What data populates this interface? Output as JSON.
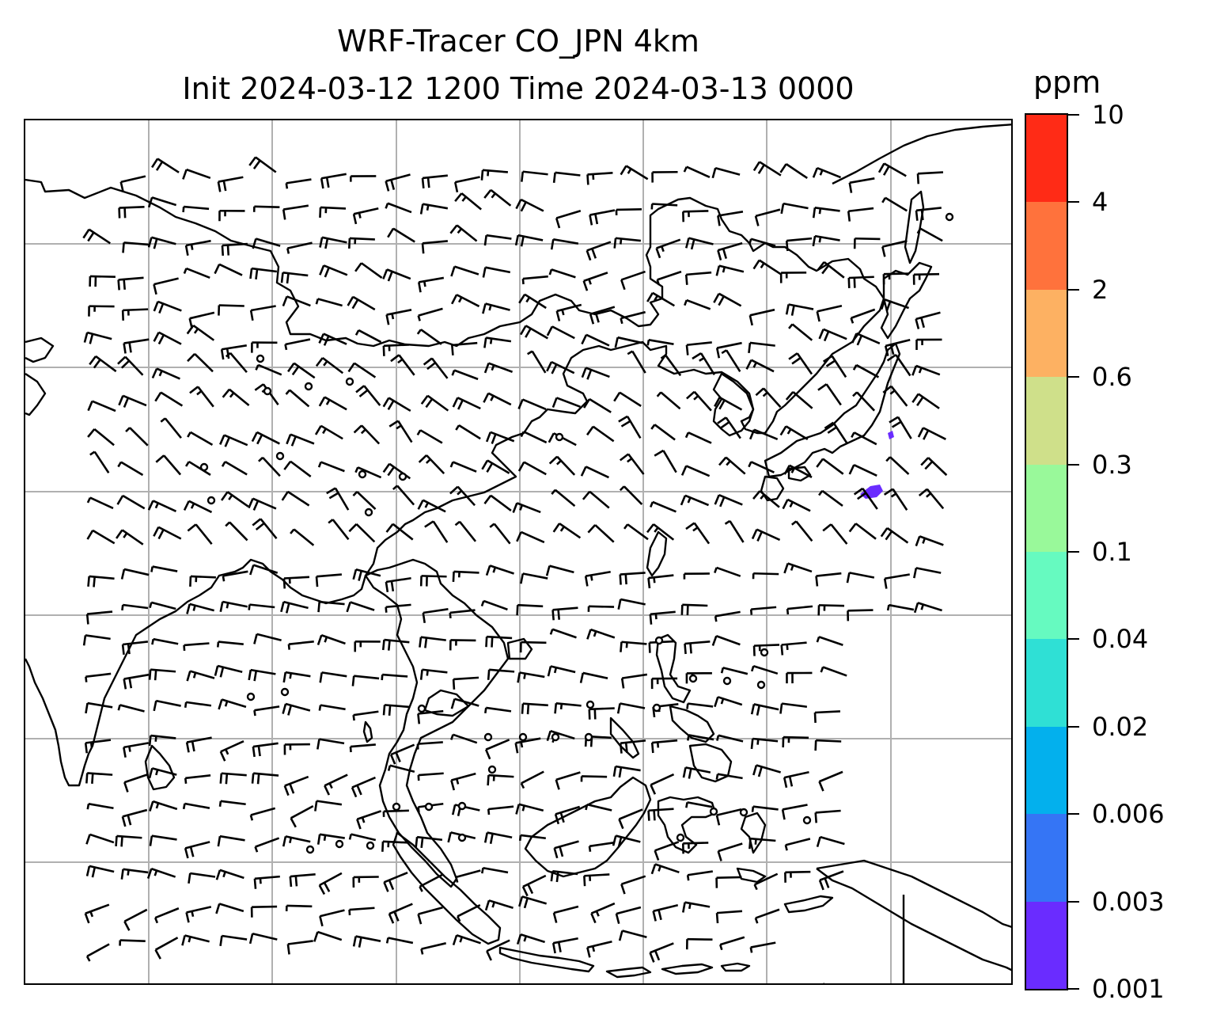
{
  "title": {
    "line1": "WRF-Tracer CO_JPN 4km",
    "line2": "Init 2024-03-12 1200 Time 2024-03-13 0000"
  },
  "colorbar": {
    "unit": "ppm",
    "levels": [
      "0.001",
      "0.003",
      "0.006",
      "0.02",
      "0.04",
      "0.1",
      "0.3",
      "0.6",
      "2",
      "4",
      "10"
    ],
    "colors": [
      "#6a2cff",
      "#3575f5",
      "#03b0ed",
      "#2fe0d5",
      "#66fac0",
      "#99f99a",
      "#cfe08a",
      "#fdb162",
      "#ff723c",
      "#ff2b16"
    ]
  },
  "map": {
    "gridlines": true,
    "concentration_patch_color": "#6a2cff"
  }
}
